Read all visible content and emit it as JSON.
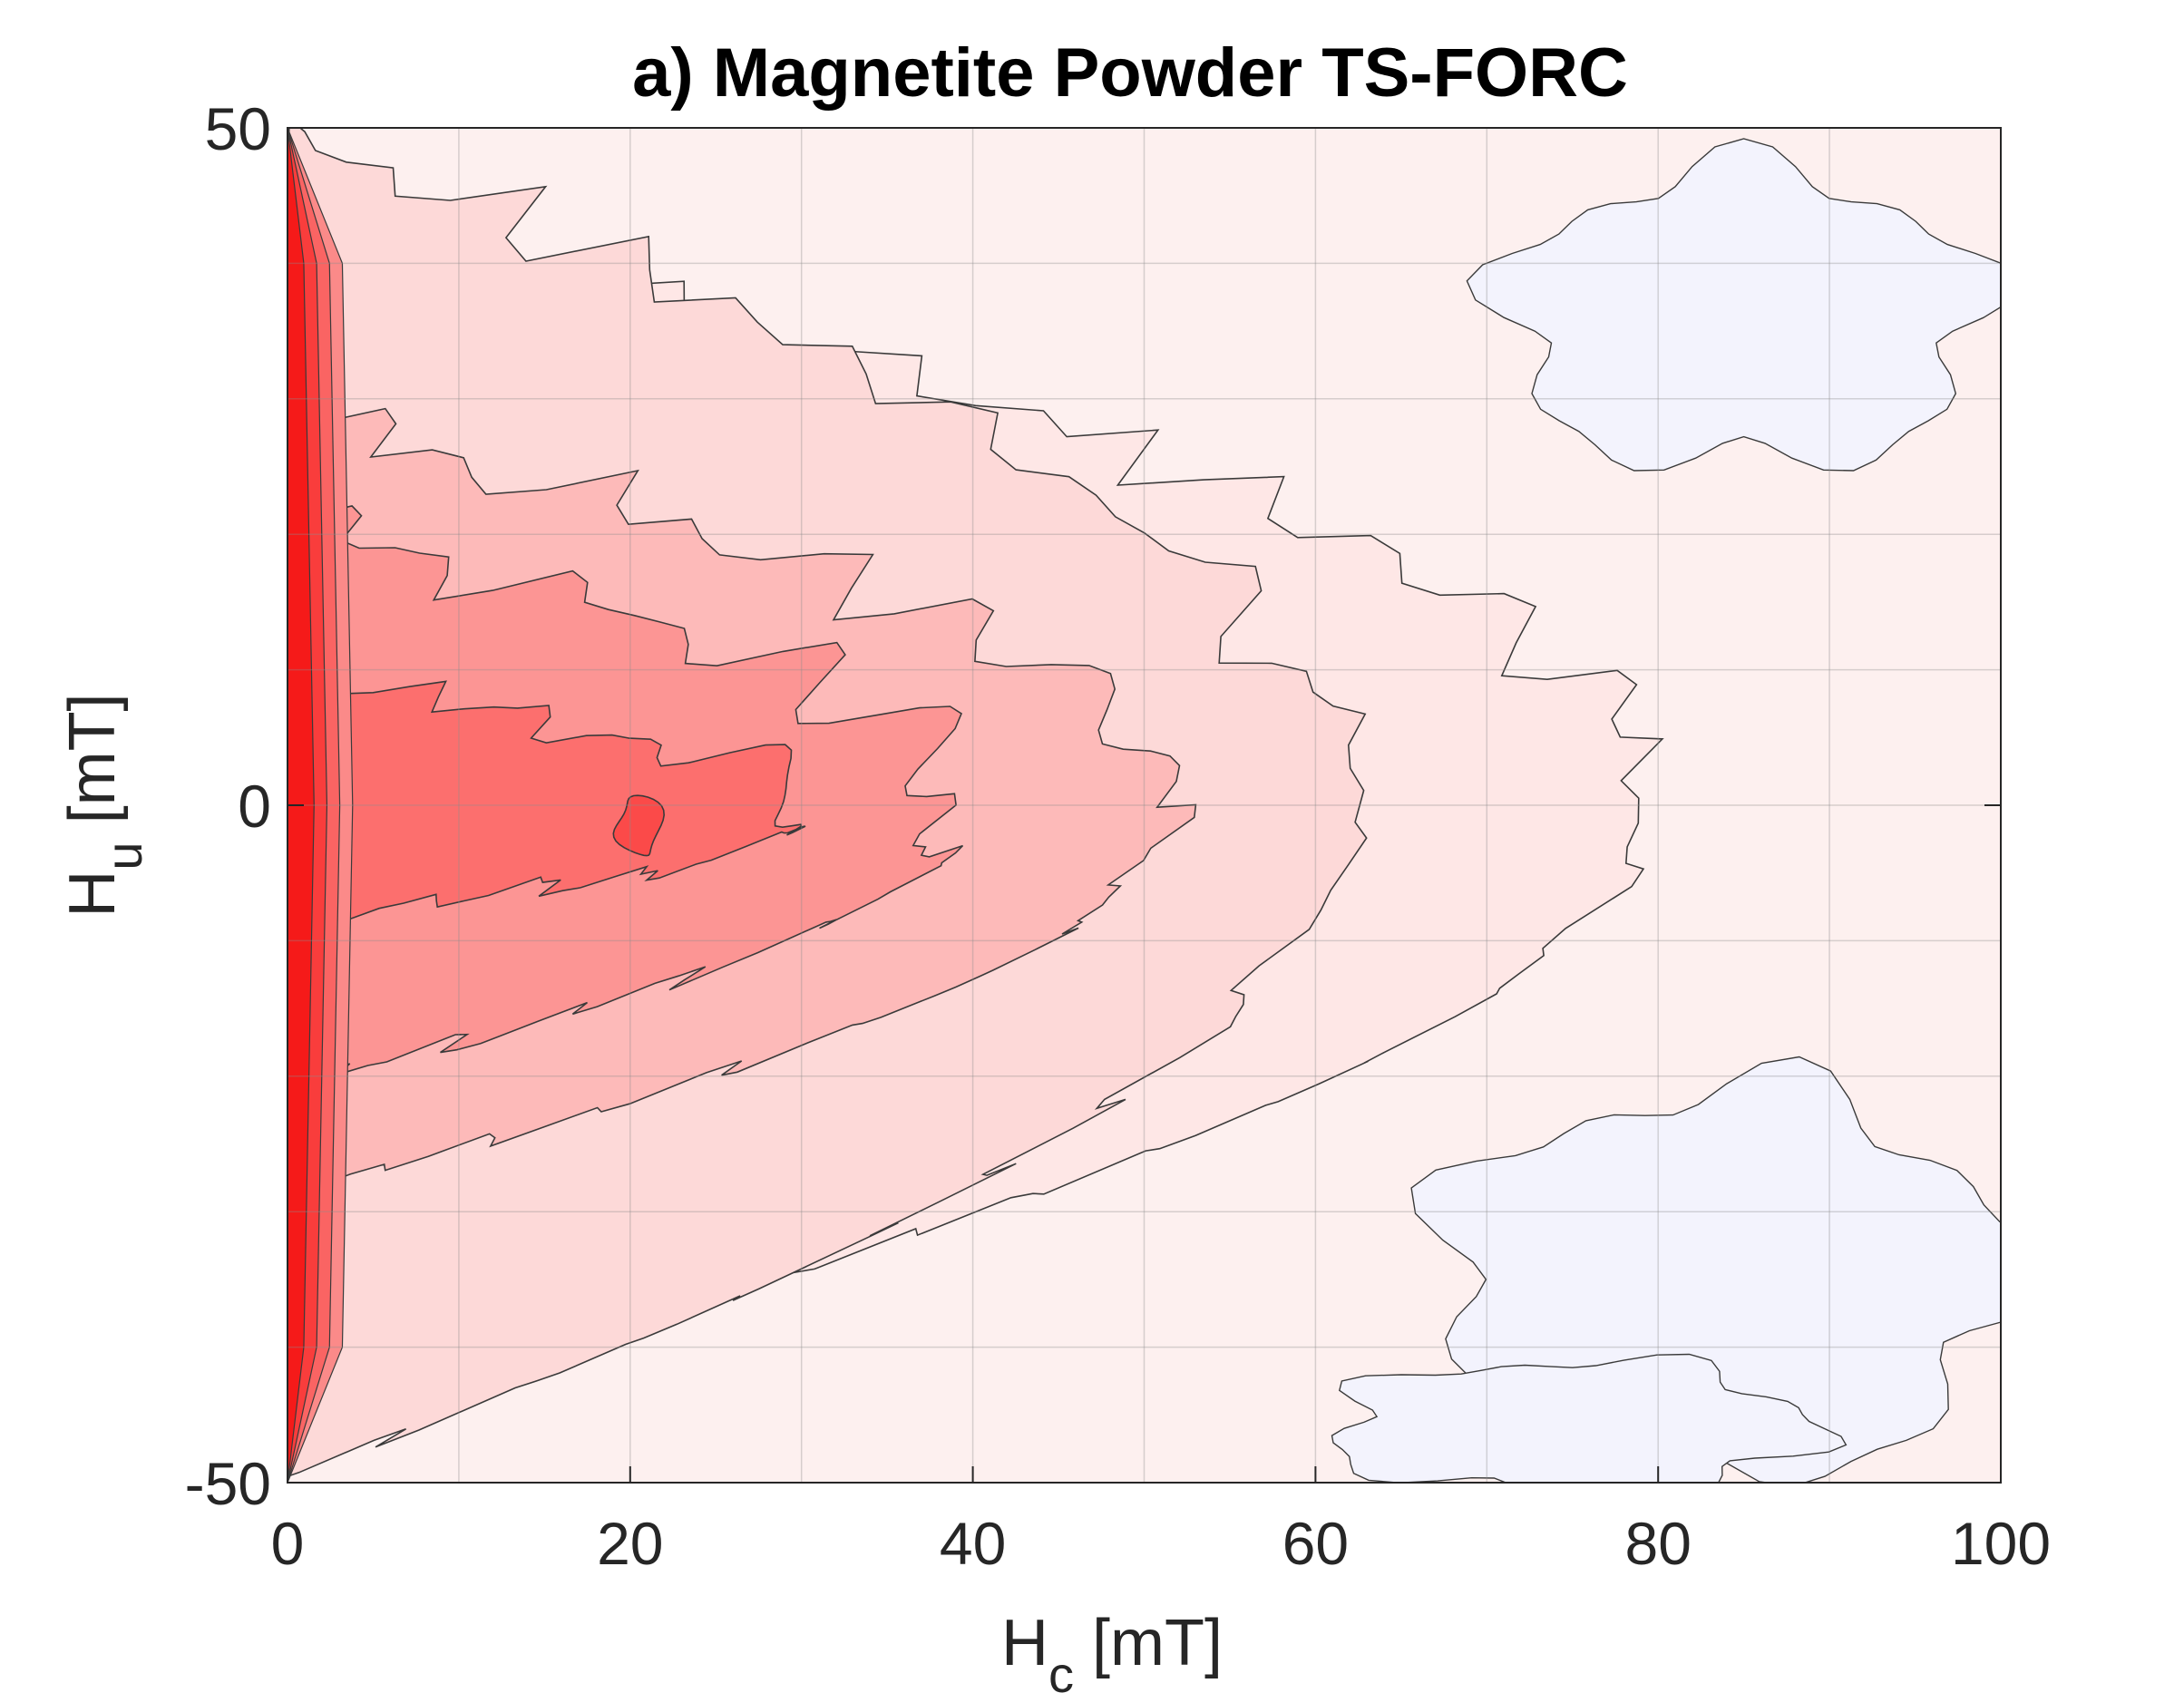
{
  "chart_data": {
    "type": "contour",
    "title": "a) Magnetite Powder TS-FORC",
    "xlabel": {
      "main": "H",
      "sub": "c",
      "unit": " [mT]"
    },
    "ylabel": {
      "main": "H",
      "sub": "u",
      "unit": " [mT]"
    },
    "xlim": [
      0,
      100
    ],
    "ylim": [
      -50,
      50
    ],
    "x_ticks": [
      0,
      20,
      40,
      60,
      80,
      100
    ],
    "x_tick_labels": [
      "0",
      "20",
      "40",
      "60",
      "80",
      "100"
    ],
    "y_ticks": [
      -50,
      0,
      50
    ],
    "y_tick_labels": [
      "-50",
      "0",
      "50"
    ],
    "grid": true,
    "grid_step": {
      "x": 10,
      "y": 10
    },
    "colormap": {
      "positive": "#ff0000",
      "zero": "#ffffff",
      "negative": "#0000ff"
    },
    "peak": {
      "hc": 20.5,
      "hu": -1.5
    },
    "levels": [
      {
        "extent_right": 0,
        "half_height": 0,
        "fill": "#fdf0ef"
      },
      {
        "extent_right": 78,
        "half_height": 45,
        "fill": "#fee7e6"
      },
      {
        "extent_right": 61,
        "half_height": 50,
        "fill": "#fdd9d8"
      },
      {
        "extent_right": 51,
        "half_height": 29,
        "fill": "#fdbab9"
      },
      {
        "extent_right": 39,
        "half_height": 21,
        "fill": "#fc9594"
      },
      {
        "extent_right": 31,
        "half_height": 9,
        "fill": "#fc6f6e"
      },
      {
        "extent_right": 22,
        "half_height": 2.2,
        "fill": "#fb4a49"
      }
    ],
    "negative_regions": [
      {
        "hc_center": 85,
        "hu_center": 36,
        "hc_half_width": 14,
        "hu_half_height": 11,
        "fill": "#f3f3fd"
      },
      {
        "hc_center": 84,
        "hu_center": -35,
        "hc_half_width": 17,
        "hu_half_height": 14,
        "fill": "#f3f3fd"
      },
      {
        "hc_center": 75,
        "hu_center": -46,
        "hc_half_width": 14,
        "hu_half_height": 5,
        "fill": "#f3f3fd"
      }
    ]
  }
}
